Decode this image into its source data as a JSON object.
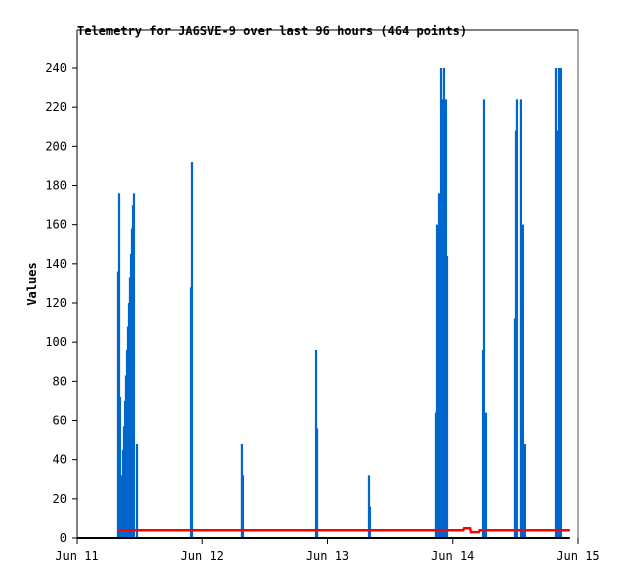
{
  "chart_data": {
    "type": "line",
    "title": "Telemetry for JA6SVE-9 over last 96 hours (464 points)",
    "xlabel": "",
    "ylabel": "Values",
    "xlim": [
      "Jun 11 00:00",
      "Jun 15 00:00"
    ],
    "ylim": [
      0,
      250
    ],
    "x_ticks": [
      "Jun 11",
      "Jun 12",
      "Jun 13",
      "Jun 14",
      "Jun 15"
    ],
    "y_ticks": [
      0,
      20,
      40,
      60,
      80,
      100,
      120,
      140,
      160,
      180,
      200,
      220,
      240
    ],
    "grid": false,
    "series": [
      {
        "color": "#0066cc",
        "style": "spikes",
        "points": [
          {
            "t": "Jun 11 07:51",
            "v": 136
          },
          {
            "t": "Jun 11 08:03",
            "v": 176
          },
          {
            "t": "Jun 11 08:14",
            "v": 72
          },
          {
            "t": "Jun 11 08:26",
            "v": 32
          },
          {
            "t": "Jun 11 08:49",
            "v": 45
          },
          {
            "t": "Jun 11 09:00",
            "v": 57
          },
          {
            "t": "Jun 11 09:12",
            "v": 70
          },
          {
            "t": "Jun 11 09:23",
            "v": 83
          },
          {
            "t": "Jun 11 09:35",
            "v": 96
          },
          {
            "t": "Jun 11 09:46",
            "v": 108
          },
          {
            "t": "Jun 11 09:58",
            "v": 120
          },
          {
            "t": "Jun 11 10:09",
            "v": 133
          },
          {
            "t": "Jun 11 10:21",
            "v": 145
          },
          {
            "t": "Jun 11 10:32",
            "v": 158
          },
          {
            "t": "Jun 11 10:44",
            "v": 170
          },
          {
            "t": "Jun 11 10:55",
            "v": 176
          },
          {
            "t": "Jun 11 11:30",
            "v": 48
          },
          {
            "t": "Jun 11 21:51",
            "v": 128
          },
          {
            "t": "Jun 11 22:02",
            "v": 192
          },
          {
            "t": "Jun 12 07:36",
            "v": 48
          },
          {
            "t": "Jun 12 07:48",
            "v": 32
          },
          {
            "t": "Jun 12 21:48",
            "v": 96
          },
          {
            "t": "Jun 12 22:00",
            "v": 56
          },
          {
            "t": "Jun 13 07:57",
            "v": 32
          },
          {
            "t": "Jun 13 08:08",
            "v": 16
          },
          {
            "t": "Jun 13 20:47",
            "v": 64
          },
          {
            "t": "Jun 13 20:59",
            "v": 160
          },
          {
            "t": "Jun 13 21:22",
            "v": 176
          },
          {
            "t": "Jun 13 21:45",
            "v": 240
          },
          {
            "t": "Jun 13 22:08",
            "v": 224
          },
          {
            "t": "Jun 13 22:19",
            "v": 240
          },
          {
            "t": "Jun 13 22:42",
            "v": 224
          },
          {
            "t": "Jun 13 22:54",
            "v": 144
          },
          {
            "t": "Jun 14 05:48",
            "v": 96
          },
          {
            "t": "Jun 14 05:59",
            "v": 224
          },
          {
            "t": "Jun 14 06:22",
            "v": 64
          },
          {
            "t": "Jun 14 11:55",
            "v": 112
          },
          {
            "t": "Jun 14 12:07",
            "v": 208
          },
          {
            "t": "Jun 14 12:18",
            "v": 224
          },
          {
            "t": "Jun 14 13:04",
            "v": 224
          },
          {
            "t": "Jun 14 13:16",
            "v": 96
          },
          {
            "t": "Jun 14 13:27",
            "v": 160
          },
          {
            "t": "Jun 14 13:50",
            "v": 48
          },
          {
            "t": "Jun 14 19:47",
            "v": 240
          },
          {
            "t": "Jun 14 19:58",
            "v": 208
          },
          {
            "t": "Jun 14 20:10",
            "v": 144
          },
          {
            "t": "Jun 14 20:21",
            "v": 240
          },
          {
            "t": "Jun 14 20:44",
            "v": 240
          }
        ]
      },
      {
        "color": "#ff0000",
        "style": "line",
        "points": [
          {
            "t": "Jun 11 07:51",
            "v": 4
          },
          {
            "t": "Jun 14 02:00",
            "v": 4
          },
          {
            "t": "Jun 14 02:10",
            "v": 5
          },
          {
            "t": "Jun 14 03:20",
            "v": 5
          },
          {
            "t": "Jun 14 03:30",
            "v": 3
          },
          {
            "t": "Jun 14 05:00",
            "v": 3
          },
          {
            "t": "Jun 14 05:10",
            "v": 4
          },
          {
            "t": "Jun 14 22:26",
            "v": 4
          }
        ]
      },
      {
        "color": "#000000",
        "style": "line",
        "points": [
          {
            "t": "Jun 11 00:00",
            "v": 0
          },
          {
            "t": "Jun 14 22:26",
            "v": 0
          }
        ]
      }
    ]
  }
}
